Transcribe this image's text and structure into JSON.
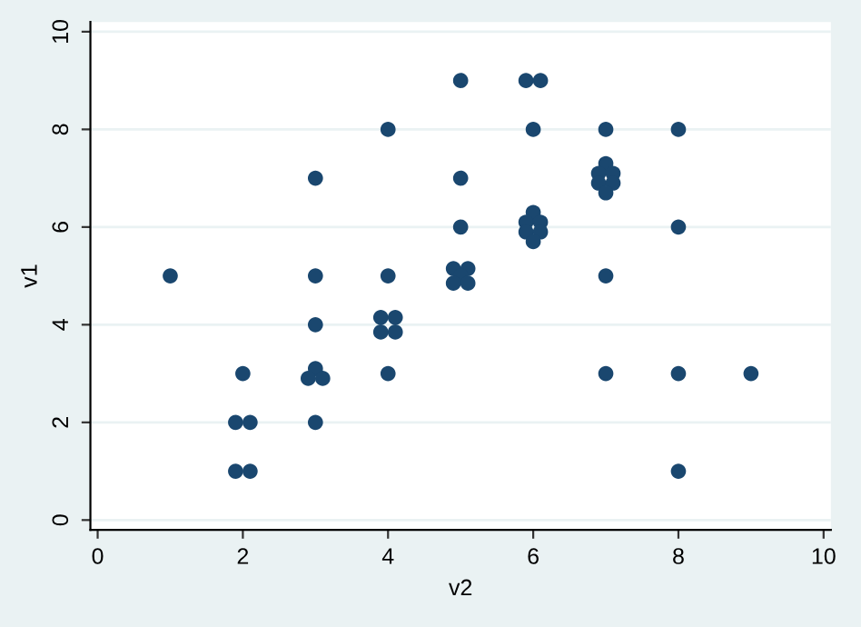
{
  "chart_data": {
    "type": "scatter",
    "xlabel": "v2",
    "ylabel": "v1",
    "x": [
      1,
      2,
      1.9,
      2.1,
      1.9,
      2.1,
      3,
      3,
      3,
      3,
      2.9,
      3.1,
      3,
      4,
      4,
      3.9,
      4.1,
      3.9,
      4.1,
      4,
      5,
      5,
      5,
      4.9,
      5.1,
      5,
      4.9,
      5.1,
      5.9,
      6.1,
      6,
      6,
      5.9,
      6.1,
      5.9,
      6.1,
      6,
      7,
      7,
      6.9,
      7.1,
      6.9,
      7.1,
      7,
      7,
      7,
      8,
      8,
      8,
      8,
      9
    ],
    "series": [
      {
        "color": "#1a476f",
        "values": [
          5,
          3,
          2,
          2,
          1,
          1,
          7,
          5,
          4,
          3.1,
          2.9,
          2.9,
          2,
          8,
          5,
          4.15,
          4.15,
          3.85,
          3.85,
          3,
          9,
          7,
          6,
          5.15,
          5.15,
          5,
          4.85,
          4.85,
          9,
          9,
          8,
          6.3,
          6.1,
          6.1,
          5.9,
          5.9,
          5.7,
          8,
          7.3,
          7.1,
          7.1,
          6.9,
          6.9,
          6.7,
          5,
          3,
          8,
          6,
          3,
          1,
          3
        ]
      }
    ],
    "xlim": [
      -0.1,
      10.1
    ],
    "ylim": [
      -0.2,
      10.2
    ],
    "xticks": [
      0,
      2,
      4,
      6,
      8,
      10
    ],
    "yticks": [
      0,
      2,
      4,
      6,
      8,
      10
    ],
    "grid": "y",
    "marker": "circle"
  }
}
